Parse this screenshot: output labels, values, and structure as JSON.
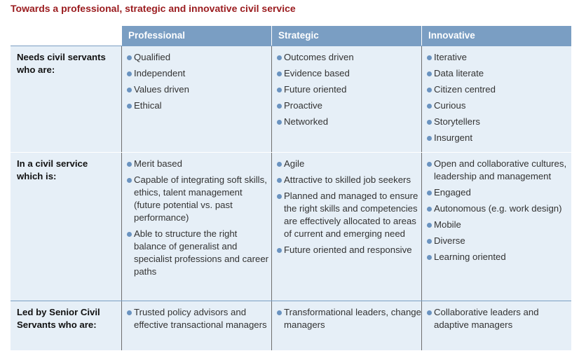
{
  "title": "Towards a professional, strategic and innovative civil service",
  "headers": [
    "Professional",
    "Strategic",
    "Innovative"
  ],
  "rows": [
    {
      "label": [
        "Needs civil servants",
        "who are:"
      ],
      "cols": [
        [
          "Qualified",
          "Independent",
          "Values driven",
          "Ethical"
        ],
        [
          "Outcomes driven",
          "Evidence based",
          "Future oriented",
          "Proactive",
          "Networked"
        ],
        [
          "Iterative",
          "Data literate",
          "Citizen centred",
          "Curious",
          "Storytellers",
          "Insurgent"
        ]
      ]
    },
    {
      "label": [
        "In a civil service",
        "which is:"
      ],
      "cols": [
        [
          "Merit based",
          "Capable of integrating soft skills, ethics, talent management (future potential vs. past performance)",
          "Able to structure the right balance of generalist and specialist professions and career paths"
        ],
        [
          "Agile",
          "Attractive to skilled job seekers",
          "Planned and managed to ensure the right skills and competencies are effectively allocated to areas of current and emerging need",
          "Future oriented and responsive"
        ],
        [
          "Open and collaborative cultures, leadership and management",
          "Engaged",
          "Autonomous (e.g. work design)",
          "Mobile",
          "Diverse",
          "Learning oriented"
        ]
      ]
    },
    {
      "label": [
        "Led by Senior Civil",
        "Servants who are:"
      ],
      "cols": [
        [
          "Trusted policy advisors and effective transactional managers"
        ],
        [
          "Transformational leaders, change managers"
        ],
        [
          "Collaborative leaders and adaptive managers"
        ]
      ]
    }
  ]
}
